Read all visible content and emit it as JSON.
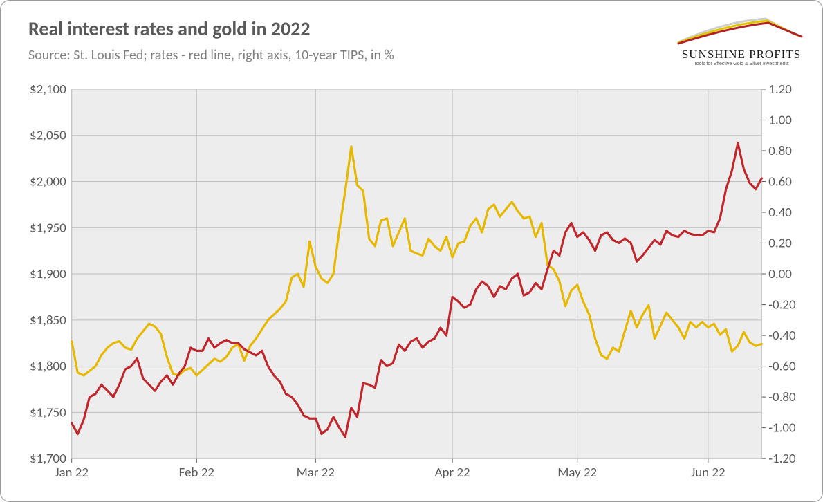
{
  "title": "Real interest rates and gold in 2022",
  "subtitle": "Source: St. Louis Fed; rates - red line, right axis, 10-year TIPS, in %",
  "logo": {
    "main_text": "SUNSHINE PROFITS",
    "tagline": "Tools for Effective Gold & Silver Investments",
    "stroke_colors": [
      "#b22222",
      "#e0c800",
      "#cfcfcf"
    ]
  },
  "chart": {
    "type": "line-dual-axis",
    "background_color": "#ededed",
    "grid_color": "#bfbfbf",
    "outer_border_color": "#9a9a9a",
    "left_axis": {
      "min": 1700,
      "max": 2100,
      "step": 50,
      "ticklabels": [
        "$1,700",
        "$1,750",
        "$1,800",
        "$1,850",
        "$1,900",
        "$1,950",
        "$2,000",
        "$2,050",
        "$2,100"
      ],
      "label_fontsize": 19
    },
    "right_axis": {
      "min": -1.2,
      "max": 1.2,
      "step": 0.2,
      "ticklabels": [
        "-1.20",
        "-1.00",
        "-0.80",
        "-0.60",
        "-0.40",
        "-0.20",
        "0.00",
        "0.20",
        "0.40",
        "0.60",
        "0.80",
        "1.00",
        "1.20"
      ],
      "label_fontsize": 19
    },
    "x_axis": {
      "ticks": [
        0,
        21,
        41,
        64,
        85,
        107
      ],
      "ticklabels": [
        "Jan 22",
        "Feb 22",
        "Mar 22",
        "Apr 22",
        "May 22",
        "Jun 22"
      ],
      "label_fontsize": 19,
      "index_max": 116
    },
    "series": [
      {
        "name": "gold",
        "axis": "left",
        "color": "#e6b800",
        "line_width": 3.2,
        "values": [
          1827,
          1793,
          1790,
          1795,
          1800,
          1812,
          1820,
          1825,
          1827,
          1820,
          1818,
          1830,
          1838,
          1846,
          1843,
          1835,
          1810,
          1792,
          1790,
          1796,
          1798,
          1790,
          1796,
          1802,
          1808,
          1805,
          1810,
          1820,
          1824,
          1806,
          1822,
          1830,
          1840,
          1850,
          1856,
          1862,
          1870,
          1896,
          1900,
          1886,
          1935,
          1908,
          1895,
          1890,
          1900,
          1948,
          1990,
          2038,
          1996,
          1990,
          1938,
          1930,
          1958,
          1960,
          1930,
          1945,
          1960,
          1925,
          1922,
          1920,
          1938,
          1930,
          1925,
          1940,
          1918,
          1933,
          1935,
          1952,
          1960,
          1945,
          1970,
          1975,
          1962,
          1970,
          1978,
          1968,
          1960,
          1962,
          1940,
          1955,
          1910,
          1905,
          1892,
          1865,
          1882,
          1888,
          1870,
          1856,
          1830,
          1812,
          1808,
          1820,
          1816,
          1838,
          1860,
          1842,
          1856,
          1866,
          1830,
          1844,
          1858,
          1850,
          1842,
          1830,
          1848,
          1842,
          1848,
          1842,
          1846,
          1834,
          1840,
          1816,
          1822,
          1837,
          1826,
          1822,
          1824
        ]
      },
      {
        "name": "tips_10y_real_rate",
        "axis": "right",
        "color": "#c0272d",
        "line_width": 3.2,
        "values": [
          -0.97,
          -1.04,
          -0.95,
          -0.8,
          -0.78,
          -0.72,
          -0.76,
          -0.8,
          -0.72,
          -0.62,
          -0.6,
          -0.55,
          -0.68,
          -0.72,
          -0.76,
          -0.7,
          -0.66,
          -0.72,
          -0.65,
          -0.6,
          -0.48,
          -0.5,
          -0.5,
          -0.42,
          -0.48,
          -0.45,
          -0.43,
          -0.45,
          -0.45,
          -0.49,
          -0.51,
          -0.53,
          -0.5,
          -0.6,
          -0.66,
          -0.7,
          -0.78,
          -0.8,
          -0.85,
          -0.92,
          -0.94,
          -0.94,
          -1.04,
          -1.01,
          -0.93,
          -1.0,
          -1.06,
          -0.87,
          -0.93,
          -0.71,
          -0.72,
          -0.74,
          -0.56,
          -0.6,
          -0.58,
          -0.46,
          -0.5,
          -0.44,
          -0.42,
          -0.48,
          -0.44,
          -0.42,
          -0.35,
          -0.4,
          -0.15,
          -0.18,
          -0.22,
          -0.2,
          -0.1,
          -0.05,
          -0.08,
          -0.15,
          -0.08,
          -0.1,
          -0.03,
          0.0,
          -0.14,
          -0.12,
          -0.06,
          -0.1,
          0.03,
          0.15,
          0.12,
          0.27,
          0.33,
          0.24,
          0.27,
          0.22,
          0.15,
          0.25,
          0.27,
          0.22,
          0.2,
          0.23,
          0.2,
          0.08,
          0.12,
          0.17,
          0.22,
          0.19,
          0.28,
          0.25,
          0.24,
          0.28,
          0.26,
          0.25,
          0.25,
          0.28,
          0.27,
          0.36,
          0.55,
          0.67,
          0.85,
          0.68,
          0.59,
          0.55,
          0.62
        ]
      }
    ]
  }
}
